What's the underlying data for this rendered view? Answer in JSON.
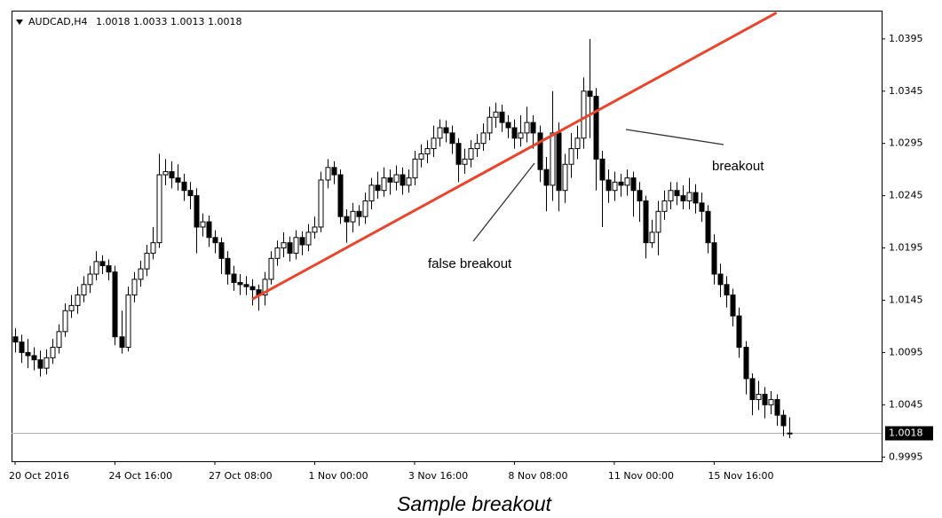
{
  "chart_data": {
    "type": "candlestick",
    "symbol": "AUDCAD,H4",
    "caption": "Sample breakout",
    "annotations": [
      "breakout",
      "false breakout"
    ],
    "up_color": "#ffffff",
    "down_color": "#000000",
    "trendline": {
      "start": [
        38,
        1.0146
      ],
      "end": [
        122,
        1.042
      ],
      "color": "#e8452c"
    },
    "ylim": [
      0.9991,
      1.0422
    ],
    "yticks": [
      0.9995,
      1.0045,
      1.0095,
      1.0145,
      1.0195,
      1.0245,
      1.0295,
      1.0345,
      1.0395
    ],
    "categories": [
      "20 Oct 2016",
      null,
      null,
      null,
      null,
      null,
      null,
      null,
      null,
      null,
      null,
      null,
      null,
      null,
      null,
      null,
      "24 Oct 16:00",
      null,
      null,
      null,
      null,
      null,
      null,
      null,
      null,
      null,
      null,
      null,
      null,
      null,
      null,
      null,
      "27 Oct 08:00",
      null,
      null,
      null,
      null,
      null,
      null,
      null,
      null,
      null,
      null,
      null,
      null,
      null,
      null,
      null,
      "1 Nov 00:00",
      null,
      null,
      null,
      null,
      null,
      null,
      null,
      null,
      null,
      null,
      null,
      null,
      null,
      null,
      null,
      "3 Nov 16:00",
      null,
      null,
      null,
      null,
      null,
      null,
      null,
      null,
      null,
      null,
      null,
      null,
      null,
      null,
      null,
      "8 Nov 08:00",
      null,
      null,
      null,
      null,
      null,
      null,
      null,
      null,
      null,
      null,
      null,
      null,
      null,
      null,
      null,
      "11 Nov 00:00",
      null,
      null,
      null,
      null,
      null,
      null,
      null,
      null,
      null,
      null,
      null,
      null,
      null,
      null,
      null,
      "15 Nov 16:00",
      null,
      null,
      null,
      null,
      null,
      null,
      null,
      null,
      null,
      null,
      null,
      null
    ],
    "open": [
      1.011,
      1.0105,
      1.0095,
      1.0092,
      1.0088,
      1.008,
      1.009,
      1.01,
      1.0115,
      1.0135,
      1.014,
      1.015,
      1.016,
      1.017,
      1.0182,
      1.0178,
      1.0172,
      1.011,
      1.01,
      1.015,
      1.0165,
      1.0175,
      1.019,
      1.02,
      1.0265,
      1.0268,
      1.0262,
      1.0258,
      1.025,
      1.0245,
      1.0215,
      1.022,
      1.0205,
      1.02,
      1.0185,
      1.017,
      1.0162,
      1.016,
      1.0158,
      1.0155,
      1.015,
      1.0165,
      1.0185,
      1.0195,
      1.02,
      1.019,
      1.0205,
      1.0198,
      1.021,
      1.0215,
      1.026,
      1.0272,
      1.0265,
      1.0225,
      1.022,
      1.023,
      1.0225,
      1.024,
      1.0255,
      1.025,
      1.0262,
      1.0258,
      1.0265,
      1.0255,
      1.0262,
      1.028,
      1.0285,
      1.029,
      1.03,
      1.031,
      1.0305,
      1.0295,
      1.0275,
      1.028,
      1.029,
      1.0295,
      1.0305,
      1.032,
      1.0325,
      1.0315,
      1.031,
      1.03,
      1.0305,
      1.0315,
      1.0305,
      1.027,
      1.0255,
      1.0305,
      1.025,
      1.0275,
      1.029,
      1.03,
      1.0345,
      1.034,
      1.028,
      1.026,
      1.025,
      1.0258,
      1.0255,
      1.0262,
      1.025,
      1.024,
      1.02,
      1.021,
      1.023,
      1.024,
      1.025,
      1.0245,
      1.024,
      1.0248,
      1.0238,
      1.023,
      1.02,
      1.017,
      1.016,
      1.015,
      1.013,
      1.01,
      1.007,
      1.005,
      1.0055,
      1.0045,
      1.005,
      1.0035,
      1.0018
    ],
    "high": [
      1.0118,
      1.0112,
      1.0108,
      1.01,
      1.0097,
      1.0098,
      1.0108,
      1.0122,
      1.0142,
      1.015,
      1.0158,
      1.0168,
      1.0178,
      1.0192,
      1.0188,
      1.0184,
      1.0178,
      1.0135,
      1.0158,
      1.0172,
      1.0183,
      1.0198,
      1.0215,
      1.0285,
      1.028,
      1.0278,
      1.0275,
      1.0266,
      1.0258,
      1.0252,
      1.0228,
      1.0226,
      1.0212,
      1.0205,
      1.0192,
      1.0178,
      1.017,
      1.0168,
      1.0165,
      1.016,
      1.0172,
      1.0192,
      1.0202,
      1.021,
      1.0206,
      1.0212,
      1.0211,
      1.0218,
      1.0225,
      1.0268,
      1.028,
      1.0278,
      1.027,
      1.0232,
      1.0238,
      1.0236,
      1.0248,
      1.0262,
      1.0268,
      1.0272,
      1.027,
      1.0274,
      1.0272,
      1.027,
      1.0288,
      1.0294,
      1.0298,
      1.0312,
      1.0318,
      1.0317,
      1.0312,
      1.03,
      1.029,
      1.0298,
      1.0304,
      1.0314,
      1.033,
      1.0334,
      1.0332,
      1.0322,
      1.0318,
      1.0322,
      1.033,
      1.0322,
      1.0312,
      1.0282,
      1.0345,
      1.0315,
      1.0285,
      1.0305,
      1.0312,
      1.0358,
      1.0395,
      1.0348,
      1.0288,
      1.027,
      1.0268,
      1.0266,
      1.027,
      1.0268,
      1.0258,
      1.0245,
      1.0222,
      1.024,
      1.025,
      1.0258,
      1.0258,
      1.0255,
      1.0262,
      1.0256,
      1.0248,
      1.0236,
      1.0208,
      1.018,
      1.0168,
      1.0156,
      1.0138,
      1.0106,
      1.0075,
      1.0068,
      1.0062,
      1.0058,
      1.0055,
      1.004,
      1.0033
    ],
    "low": [
      1.0095,
      1.0085,
      1.008,
      1.0078,
      1.0072,
      1.0074,
      1.0084,
      1.0094,
      1.011,
      1.0128,
      1.0132,
      1.0143,
      1.0152,
      1.0164,
      1.017,
      1.0164,
      1.0102,
      1.0094,
      1.0096,
      1.0143,
      1.0158,
      1.0168,
      1.0184,
      1.0195,
      1.0255,
      1.0252,
      1.025,
      1.024,
      1.0232,
      1.019,
      1.0206,
      1.0196,
      1.019,
      1.017,
      1.016,
      1.0154,
      1.015,
      1.015,
      1.014,
      1.0135,
      1.014,
      1.016,
      1.0178,
      1.0186,
      1.0182,
      1.0184,
      1.0188,
      1.0192,
      1.0204,
      1.021,
      1.0252,
      1.0256,
      1.0218,
      1.02,
      1.021,
      1.0216,
      1.0218,
      1.0232,
      1.0242,
      1.0244,
      1.0246,
      1.025,
      1.0246,
      1.0248,
      1.0255,
      1.0272,
      1.0276,
      1.0282,
      1.0292,
      1.0296,
      1.0285,
      1.0258,
      1.0266,
      1.0272,
      1.0282,
      1.0288,
      1.0298,
      1.031,
      1.0306,
      1.03,
      1.029,
      1.0292,
      1.0296,
      1.029,
      1.0258,
      1.023,
      1.024,
      1.023,
      1.0238,
      1.0262,
      1.028,
      1.029,
      1.03,
      1.025,
      1.0215,
      1.0238,
      1.024,
      1.0244,
      1.0245,
      1.0225,
      1.022,
      1.0185,
      1.0195,
      1.0188,
      1.0222,
      1.0232,
      1.0236,
      1.0232,
      1.0232,
      1.0228,
      1.022,
      1.019,
      1.016,
      1.0148,
      1.0138,
      1.012,
      1.009,
      1.0055,
      1.0035,
      1.004,
      1.0032,
      1.0036,
      1.0025,
      1.0015,
      1.0013
    ],
    "close": [
      1.0105,
      1.0095,
      1.0092,
      1.0088,
      1.008,
      1.009,
      1.01,
      1.0115,
      1.0135,
      1.014,
      1.015,
      1.016,
      1.017,
      1.0182,
      1.0178,
      1.0172,
      1.011,
      1.01,
      1.015,
      1.0165,
      1.0175,
      1.019,
      1.02,
      1.0265,
      1.0268,
      1.0262,
      1.0258,
      1.025,
      1.0245,
      1.0215,
      1.022,
      1.0205,
      1.02,
      1.0185,
      1.017,
      1.0162,
      1.016,
      1.0158,
      1.0155,
      1.015,
      1.0165,
      1.0185,
      1.0195,
      1.02,
      1.019,
      1.0205,
      1.0198,
      1.021,
      1.0215,
      1.026,
      1.0272,
      1.0265,
      1.0225,
      1.022,
      1.023,
      1.0225,
      1.024,
      1.0255,
      1.025,
      1.0262,
      1.0258,
      1.0265,
      1.0255,
      1.0262,
      1.028,
      1.0285,
      1.029,
      1.03,
      1.031,
      1.0305,
      1.0295,
      1.0275,
      1.028,
      1.029,
      1.0295,
      1.0305,
      1.032,
      1.0325,
      1.0315,
      1.031,
      1.03,
      1.0305,
      1.0315,
      1.0305,
      1.027,
      1.0255,
      1.0305,
      1.025,
      1.0275,
      1.029,
      1.03,
      1.0345,
      1.034,
      1.028,
      1.026,
      1.025,
      1.0258,
      1.0255,
      1.0262,
      1.025,
      1.024,
      1.02,
      1.021,
      1.023,
      1.024,
      1.025,
      1.0245,
      1.024,
      1.0248,
      1.0238,
      1.023,
      1.02,
      1.017,
      1.016,
      1.015,
      1.013,
      1.01,
      1.007,
      1.005,
      1.0055,
      1.0045,
      1.005,
      1.0035,
      1.0025,
      1.0018
    ]
  }
}
